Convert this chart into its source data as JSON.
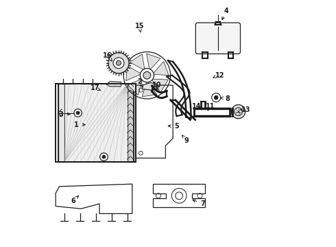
{
  "bg_color": "#ffffff",
  "lc": "#1a1a1a",
  "lw": 0.9,
  "fig_w": 4.9,
  "fig_h": 3.6,
  "dpi": 100,
  "labels": {
    "1": [
      0.13,
      0.495,
      0.175,
      0.495
    ],
    "2": [
      0.385,
      0.67,
      0.4,
      0.645
    ],
    "3": [
      0.065,
      0.535,
      0.115,
      0.54
    ],
    "4": [
      0.735,
      0.955,
      0.715,
      0.91
    ],
    "5": [
      0.535,
      0.49,
      0.49,
      0.49
    ],
    "6": [
      0.115,
      0.185,
      0.145,
      0.215
    ],
    "7": [
      0.64,
      0.175,
      0.59,
      0.195
    ],
    "8": [
      0.74,
      0.6,
      0.71,
      0.605
    ],
    "9": [
      0.575,
      0.43,
      0.555,
      0.455
    ],
    "10": [
      0.455,
      0.655,
      0.46,
      0.635
    ],
    "11": [
      0.67,
      0.57,
      0.66,
      0.55
    ],
    "12": [
      0.71,
      0.695,
      0.68,
      0.685
    ],
    "13": [
      0.815,
      0.555,
      0.79,
      0.555
    ],
    "14": [
      0.615,
      0.57,
      0.638,
      0.555
    ],
    "15": [
      0.385,
      0.895,
      0.39,
      0.86
    ],
    "16": [
      0.255,
      0.775,
      0.275,
      0.75
    ],
    "17": [
      0.205,
      0.645,
      0.235,
      0.63
    ]
  }
}
